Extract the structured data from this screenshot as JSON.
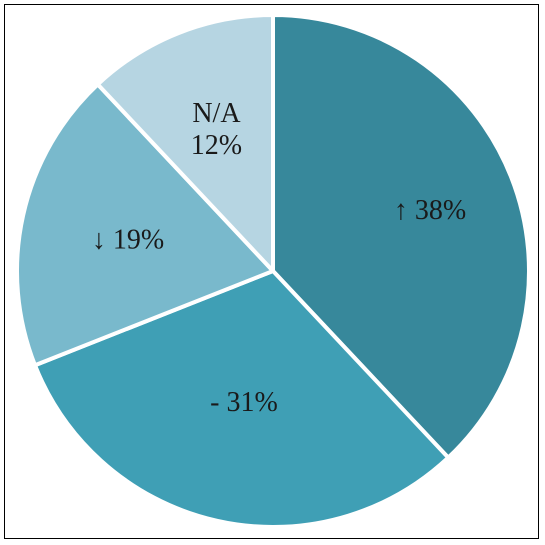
{
  "chart_data": {
    "type": "pie",
    "title": "",
    "slices": [
      {
        "label": "↑ 38%",
        "category": "↑",
        "value": 38,
        "color": "#37889b"
      },
      {
        "label": "- 31%",
        "category": "-",
        "value": 31,
        "color": "#3f9fb5"
      },
      {
        "label": "↓ 19%",
        "category": "↓",
        "value": 19,
        "color": "#79b9cc"
      },
      {
        "label": "N/A\n12%",
        "category": "N/A",
        "value": 12,
        "color": "#b6d5e2"
      }
    ],
    "start_angle_deg": 0,
    "direction": "clockwise",
    "separator_color": "#ffffff"
  }
}
